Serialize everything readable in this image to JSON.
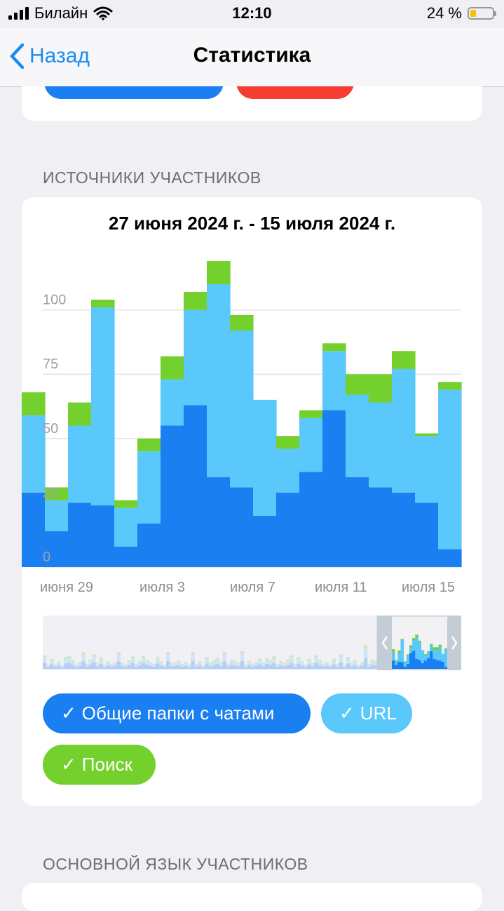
{
  "status": {
    "carrier": "Билайн",
    "time": "12:10",
    "battery": "24 %",
    "battery_level": 0.24
  },
  "nav": {
    "back_label": "Назад",
    "title": "Статистика"
  },
  "sections": {
    "sources_header": "ИСТОЧНИКИ УЧАСТНИКОВ",
    "language_header": "ОСНОВНОЙ ЯЗЫК УЧАСТНИКОВ"
  },
  "chart": {
    "range_title": "27 июня 2024 г. - 15 июля 2024 г."
  },
  "filters": {
    "folders": "Общие папки с чатами",
    "url": "URL",
    "search": "Поиск"
  },
  "colors": {
    "folders": "#1a7ff0",
    "url": "#5ac8fa",
    "search": "#74d02c",
    "accent": "#1a8cf0"
  },
  "chart_data": {
    "type": "bar",
    "stacked": true,
    "x": [
      "27 июня",
      "28 июня",
      "29 июня",
      "30 июня",
      "1 июля",
      "2 июля",
      "3 июля",
      "4 июля",
      "5 июля",
      "6 июля",
      "7 июля",
      "8 июля",
      "9 июля",
      "10 июля",
      "11 июля",
      "12 июля",
      "13 июля",
      "14 июля",
      "15 июля"
    ],
    "x_tick_labels": [
      "июня 29",
      "июля 3",
      "июля 7",
      "июля 11",
      "июля 15"
    ],
    "y_ticks": [
      "0",
      "25",
      "50",
      "75",
      "100"
    ],
    "ylim": [
      0,
      122
    ],
    "series": [
      {
        "name": "Общие папки с чатами",
        "color": "#1a7ff0",
        "values": [
          29,
          14,
          25,
          24,
          8,
          17,
          55,
          63,
          35,
          31,
          20,
          29,
          37,
          61,
          35,
          31,
          29,
          25,
          7
        ]
      },
      {
        "name": "URL",
        "color": "#5ac8fa",
        "values": [
          30,
          12,
          30,
          77,
          15,
          28,
          18,
          37,
          75,
          61,
          45,
          17,
          21,
          23,
          32,
          33,
          48,
          26,
          62
        ]
      },
      {
        "name": "Поиск",
        "color": "#74d02c",
        "values": [
          9,
          5,
          9,
          3,
          3,
          5,
          9,
          7,
          9,
          6,
          0,
          5,
          3,
          3,
          8,
          11,
          7,
          1,
          3
        ]
      }
    ]
  }
}
